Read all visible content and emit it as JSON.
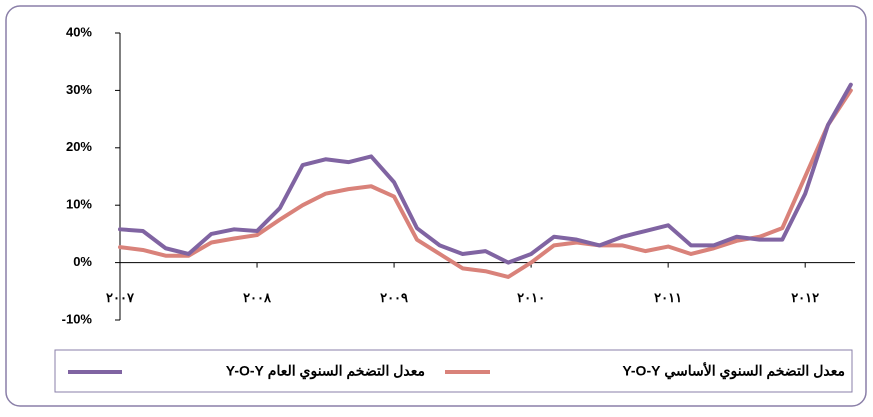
{
  "chart_data": {
    "type": "line",
    "x": [
      2007,
      2007.167,
      2007.333,
      2007.5,
      2007.667,
      2007.833,
      2008,
      2008.167,
      2008.333,
      2008.5,
      2008.667,
      2008.833,
      2009,
      2009.167,
      2009.333,
      2009.5,
      2009.667,
      2009.833,
      2010,
      2010.167,
      2010.333,
      2010.5,
      2010.667,
      2010.833,
      2011,
      2011.167,
      2011.333,
      2011.5,
      2011.667,
      2011.833,
      2012,
      2012.167,
      2012.333
    ],
    "series": [
      {
        "name": "معدل التضخم السنوي الأساسي Y-O-Y",
        "color": "#d9827a",
        "values": [
          2.7,
          2.2,
          1.2,
          1.2,
          3.5,
          4.2,
          4.8,
          7.5,
          10,
          12,
          12.8,
          13.3,
          11.5,
          4,
          1.5,
          -1,
          -1.5,
          -2.5,
          0,
          3,
          3.5,
          3,
          3,
          2,
          2.8,
          1.5,
          2.5,
          3.8,
          4.5,
          6,
          15,
          24,
          30
        ]
      },
      {
        "name": "معدل التضخم السنوي العام Y-O-Y",
        "color": "#8064a2",
        "values": [
          5.8,
          5.5,
          2.5,
          1.5,
          5,
          5.8,
          5.5,
          9.5,
          17,
          18,
          17.5,
          18.5,
          14,
          6,
          3,
          1.5,
          2,
          0,
          1.5,
          4.5,
          4,
          3,
          4.5,
          5.5,
          6.5,
          3,
          3,
          4.5,
          4,
          4,
          12,
          24,
          31
        ]
      }
    ],
    "xlim": [
      2007,
      2012.4
    ],
    "xticks": [
      {
        "value": 2007,
        "label": "٢٠٠٧"
      },
      {
        "value": 2008,
        "label": "٢٠٠٨"
      },
      {
        "value": 2009,
        "label": "٢٠٠٩"
      },
      {
        "value": 2010,
        "label": "٢٠١٠"
      },
      {
        "value": 2011,
        "label": "٢٠١١"
      },
      {
        "value": 2012,
        "label": "٢٠١٢"
      }
    ],
    "ylim": [
      -10,
      40
    ],
    "yticks": [
      {
        "value": -10,
        "label": "-10%"
      },
      {
        "value": 0,
        "label": "0%"
      },
      {
        "value": 10,
        "label": "10%"
      },
      {
        "value": 20,
        "label": "20%"
      },
      {
        "value": 30,
        "label": "30%"
      },
      {
        "value": 40,
        "label": "40%"
      }
    ],
    "legend": "bottom"
  }
}
